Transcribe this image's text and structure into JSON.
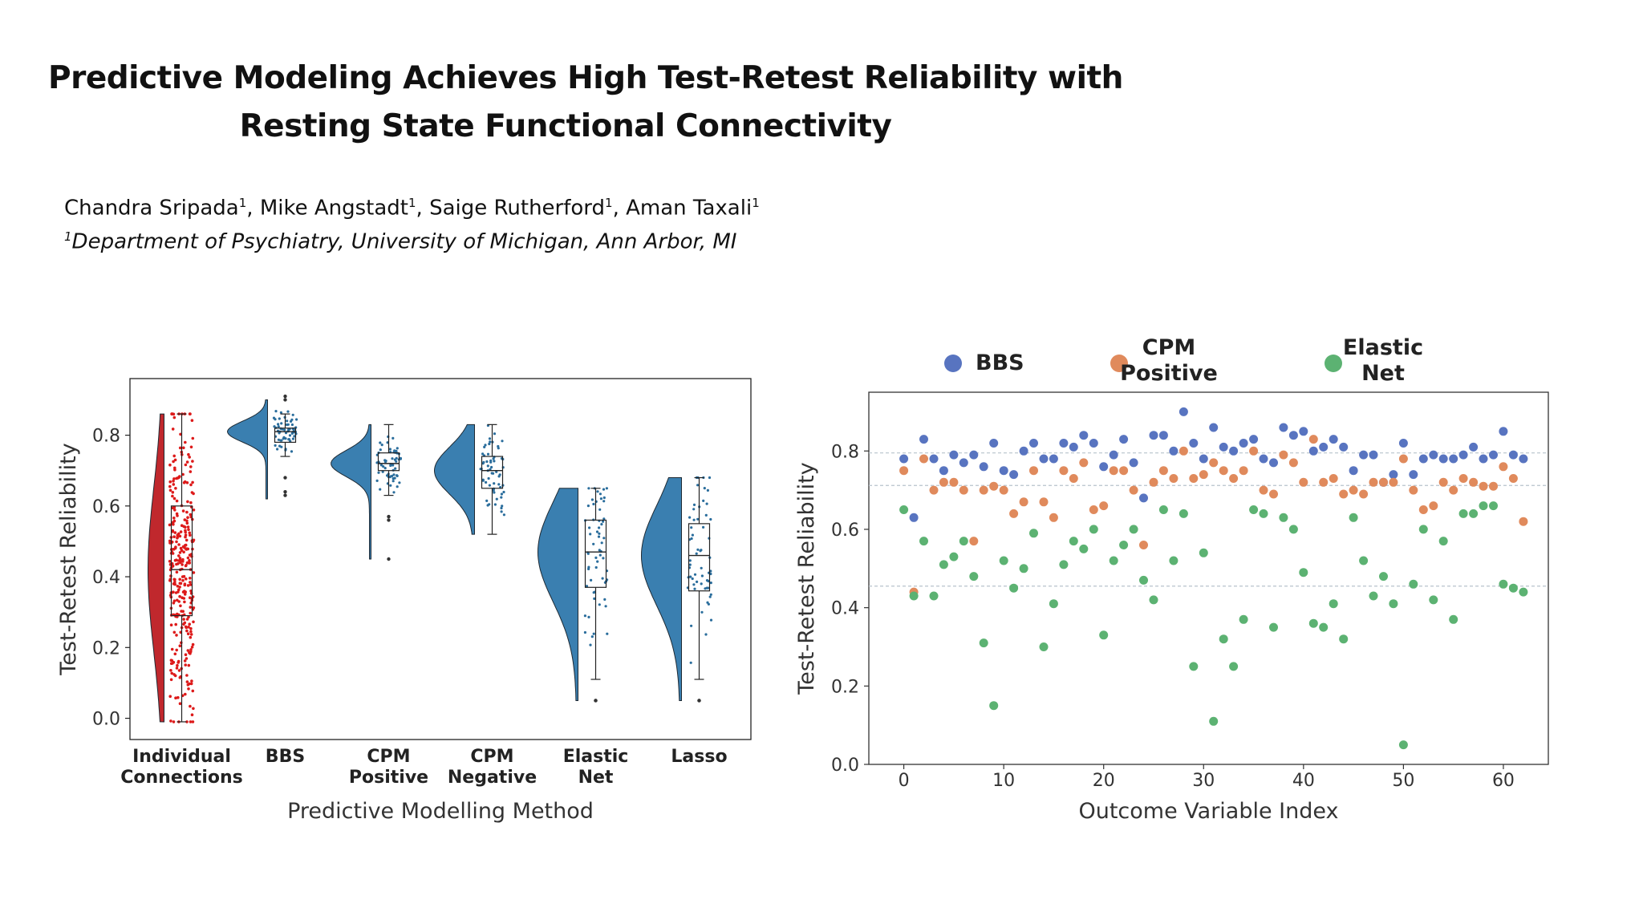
{
  "header": {
    "title_line1": "Predictive Modeling Achieves High Test-Retest Reliability with",
    "title_line2": "Resting State Functional Connectivity",
    "authors": [
      {
        "name": "Chandra Sripada",
        "sup": "1"
      },
      {
        "name": "Mike Angstadt",
        "sup": "1"
      },
      {
        "name": "Saige Rutherford",
        "sup": "1"
      },
      {
        "name": "Aman Taxali",
        "sup": "1"
      }
    ],
    "affiliation_sup": "1",
    "affiliation": "Department of Psychiatry, University of Michigan, Ann Arbor, MI"
  },
  "chart_data": [
    {
      "type": "raincloud",
      "xlabel": "Predictive Modelling Method",
      "ylabel": "Test-Retest Reliability",
      "ylim": [
        -0.06,
        0.96
      ],
      "yticks": [
        0.0,
        0.2,
        0.4,
        0.6,
        0.8
      ],
      "ytick_labels": [
        "0.0",
        "0.2",
        "0.4",
        "0.6",
        "0.8"
      ],
      "groups": [
        {
          "label": [
            "Individual",
            "Connections"
          ],
          "color": "#c0282d",
          "point_color": "#dd1a1a",
          "n_points": 320,
          "q1": 0.29,
          "median": 0.42,
          "q3": 0.6,
          "whisker_low": -0.01,
          "whisker_high": 0.86,
          "dist_min": -0.01,
          "dist_max": 0.86,
          "outliers": []
        },
        {
          "label": [
            "BBS"
          ],
          "color": "#3a7fb0",
          "point_color": "#2a6d9c",
          "n_points": 60,
          "q1": 0.78,
          "median": 0.81,
          "q3": 0.82,
          "whisker_low": 0.74,
          "whisker_high": 0.86,
          "dist_min": 0.62,
          "dist_max": 0.9,
          "outliers": [
            0.91,
            0.9,
            0.68,
            0.64,
            0.63
          ]
        },
        {
          "label": [
            "CPM",
            "Positive"
          ],
          "color": "#3a7fb0",
          "point_color": "#2a6d9c",
          "n_points": 60,
          "q1": 0.7,
          "median": 0.72,
          "q3": 0.75,
          "whisker_low": 0.63,
          "whisker_high": 0.83,
          "dist_min": 0.45,
          "dist_max": 0.83,
          "outliers": [
            0.57,
            0.56,
            0.45
          ]
        },
        {
          "label": [
            "CPM",
            "Negative"
          ],
          "color": "#3a7fb0",
          "point_color": "#2a6d9c",
          "n_points": 60,
          "q1": 0.65,
          "median": 0.7,
          "q3": 0.74,
          "whisker_low": 0.52,
          "whisker_high": 0.83,
          "dist_min": 0.52,
          "dist_max": 0.83,
          "outliers": []
        },
        {
          "label": [
            "Elastic",
            "Net"
          ],
          "color": "#3a7fb0",
          "point_color": "#2a6d9c",
          "n_points": 60,
          "q1": 0.37,
          "median": 0.47,
          "q3": 0.56,
          "whisker_low": 0.11,
          "whisker_high": 0.65,
          "dist_min": 0.05,
          "dist_max": 0.65,
          "outliers": [
            0.05,
            0.05
          ]
        },
        {
          "label": [
            "Lasso"
          ],
          "color": "#3a7fb0",
          "point_color": "#2a6d9c",
          "n_points": 60,
          "q1": 0.36,
          "median": 0.46,
          "q3": 0.55,
          "whisker_low": 0.11,
          "whisker_high": 0.68,
          "dist_min": 0.05,
          "dist_max": 0.68,
          "outliers": [
            0.05,
            0.05
          ]
        }
      ]
    },
    {
      "type": "scatter",
      "xlabel": "Outcome Variable Index",
      "ylabel": "Test-Retest Reliability",
      "xlim": [
        -3.5,
        64.5
      ],
      "ylim": [
        0.0,
        0.95
      ],
      "xticks": [
        0,
        10,
        20,
        30,
        40,
        50,
        60
      ],
      "yticks": [
        0.0,
        0.2,
        0.4,
        0.6,
        0.8
      ],
      "ytick_labels": [
        "0.0",
        "0.2",
        "0.4",
        "0.6",
        "0.8"
      ],
      "reference_lines": [
        0.795,
        0.712,
        0.455
      ],
      "series": [
        {
          "name": "BBS",
          "legend": [
            "BBS"
          ],
          "color": "#5874c0",
          "y": [
            0.78,
            0.63,
            0.83,
            0.78,
            0.75,
            0.79,
            0.77,
            0.79,
            0.76,
            0.82,
            0.75,
            0.74,
            0.8,
            0.82,
            0.78,
            0.78,
            0.82,
            0.81,
            0.84,
            0.82,
            0.76,
            0.79,
            0.83,
            0.77,
            0.68,
            0.84,
            0.84,
            0.8,
            0.9,
            0.82,
            0.78,
            0.86,
            0.81,
            0.8,
            0.82,
            0.83,
            0.78,
            0.77,
            0.86,
            0.84,
            0.85,
            0.8,
            0.81,
            0.83,
            0.81,
            0.75,
            0.79,
            0.79,
            0.72,
            0.74,
            0.82,
            0.74,
            0.78,
            0.79,
            0.78,
            0.78,
            0.79,
            0.81,
            0.78,
            0.79,
            0.85,
            0.79,
            0.78
          ]
        },
        {
          "name": "CPM Positive",
          "legend": [
            "CPM",
            "Positive"
          ],
          "color": "#e08a5c",
          "y": [
            0.75,
            0.44,
            0.78,
            0.7,
            0.72,
            0.72,
            0.7,
            0.57,
            0.7,
            0.71,
            0.7,
            0.64,
            0.67,
            0.75,
            0.67,
            0.63,
            0.75,
            0.73,
            0.77,
            0.65,
            0.66,
            0.75,
            0.75,
            0.7,
            0.56,
            0.72,
            0.75,
            0.73,
            0.8,
            0.73,
            0.74,
            0.77,
            0.75,
            0.73,
            0.75,
            0.8,
            0.7,
            0.69,
            0.79,
            0.77,
            0.72,
            0.83,
            0.72,
            0.73,
            0.69,
            0.7,
            0.69,
            0.72,
            0.72,
            0.72,
            0.78,
            0.7,
            0.65,
            0.66,
            0.72,
            0.7,
            0.73,
            0.72,
            0.71,
            0.71,
            0.76,
            0.73,
            0.62
          ]
        },
        {
          "name": "Elastic Net",
          "legend": [
            "Elastic",
            "Net"
          ],
          "color": "#5cb272",
          "y": [
            0.65,
            0.43,
            0.57,
            0.43,
            0.51,
            0.53,
            0.57,
            0.48,
            0.31,
            0.15,
            0.52,
            0.45,
            0.5,
            0.59,
            0.3,
            0.41,
            0.51,
            0.57,
            0.55,
            0.6,
            0.33,
            0.52,
            0.56,
            0.6,
            0.47,
            0.42,
            0.65,
            0.52,
            0.64,
            0.25,
            0.54,
            0.11,
            0.32,
            0.25,
            0.37,
            0.65,
            0.64,
            0.35,
            0.63,
            0.6,
            0.49,
            0.36,
            0.35,
            0.41,
            0.32,
            0.63,
            0.52,
            0.43,
            0.48,
            0.41,
            0.05,
            0.46,
            0.6,
            0.42,
            0.57,
            0.37,
            0.64,
            0.64,
            0.66,
            0.66,
            0.46,
            0.45,
            0.44
          ]
        }
      ]
    }
  ]
}
